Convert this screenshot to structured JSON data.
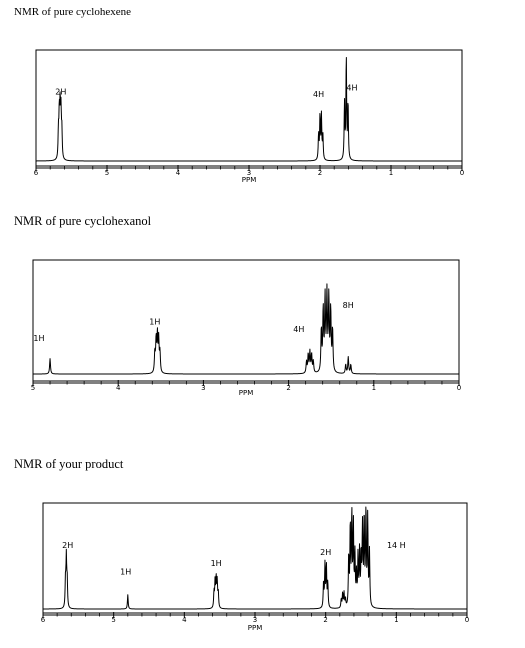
{
  "chart_data": [
    {
      "type": "line",
      "title": "NMR of pure cyclohexene",
      "xlabel": "PPM",
      "xlim": [
        6,
        0
      ],
      "xticks": [
        "6",
        "5",
        "4",
        "3",
        "2",
        "1",
        "0"
      ],
      "annotations": [
        {
          "text": "2H",
          "x": 5.65,
          "y": 0.62
        },
        {
          "text": "4H",
          "x": 2.02,
          "y": 0.6
        },
        {
          "text": "4H",
          "x": 1.55,
          "y": 0.66
        }
      ],
      "peaks": [
        {
          "ppm": 5.66,
          "height": 0.47,
          "split": 5,
          "spacing": 0.012
        },
        {
          "ppm": 1.99,
          "height": 0.43,
          "split": 4,
          "spacing": 0.02
        },
        {
          "ppm": 1.63,
          "height": 0.96,
          "split": 3,
          "spacing": 0.025
        }
      ]
    },
    {
      "type": "line",
      "title": "NMR of pure cyclohexanol",
      "xlabel": "PPM",
      "xlim": [
        5,
        0
      ],
      "xticks": [
        "5",
        "4",
        "3",
        "2",
        "1",
        "0"
      ],
      "annotations": [
        {
          "text": "1H",
          "x": 4.93,
          "y": 0.3
        },
        {
          "text": "1H",
          "x": 3.57,
          "y": 0.45
        },
        {
          "text": "4H",
          "x": 1.88,
          "y": 0.38
        },
        {
          "text": "8H",
          "x": 1.3,
          "y": 0.6
        }
      ],
      "peaks": [
        {
          "ppm": 4.8,
          "height": 0.14,
          "split": 1,
          "spacing": 0
        },
        {
          "ppm": 3.54,
          "height": 0.33,
          "split": 5,
          "spacing": 0.015
        },
        {
          "ppm": 1.75,
          "height": 0.19,
          "split": 5,
          "spacing": 0.02
        },
        {
          "ppm": 1.55,
          "height": 0.7,
          "split": 7,
          "spacing": 0.022
        },
        {
          "ppm": 1.3,
          "height": 0.15,
          "split": 3,
          "spacing": 0.03
        }
      ]
    },
    {
      "type": "line",
      "title": "NMR of your product",
      "xlabel": "PPM",
      "xlim": [
        6,
        0
      ],
      "xticks": [
        "6",
        "5",
        "4",
        "3",
        "2",
        "1",
        "0"
      ],
      "annotations": [
        {
          "text": "2H",
          "x": 5.65,
          "y": 0.6
        },
        {
          "text": "1H",
          "x": 4.83,
          "y": 0.34
        },
        {
          "text": "1H",
          "x": 3.55,
          "y": 0.42
        },
        {
          "text": "2H",
          "x": 2.0,
          "y": 0.53
        },
        {
          "text": "14 H",
          "x": 1.0,
          "y": 0.6
        }
      ],
      "peaks": [
        {
          "ppm": 5.67,
          "height": 0.48,
          "split": 3,
          "spacing": 0.012
        },
        {
          "ppm": 4.8,
          "height": 0.14,
          "split": 1,
          "spacing": 0
        },
        {
          "ppm": 3.55,
          "height": 0.28,
          "split": 5,
          "spacing": 0.015
        },
        {
          "ppm": 2.0,
          "height": 0.44,
          "split": 4,
          "spacing": 0.02
        },
        {
          "ppm": 1.75,
          "height": 0.15,
          "split": 4,
          "spacing": 0.02
        },
        {
          "ppm": 1.63,
          "height": 0.9,
          "split": 5,
          "spacing": 0.022
        },
        {
          "ppm": 1.52,
          "height": 0.55,
          "split": 5,
          "spacing": 0.022
        },
        {
          "ppm": 1.43,
          "height": 0.98,
          "split": 5,
          "spacing": 0.025
        }
      ]
    }
  ]
}
